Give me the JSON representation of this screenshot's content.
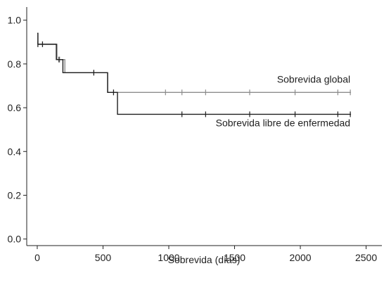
{
  "chart_data": {
    "type": "line",
    "title": "",
    "xlabel": "Sobrevida (días)",
    "ylabel": "",
    "xlim": [
      -80,
      2620
    ],
    "ylim": [
      -0.03,
      1.06
    ],
    "x_ticks": [
      0,
      500,
      1000,
      1500,
      2000,
      2500
    ],
    "x_tick_labels": [
      "0",
      "500",
      "1000",
      "1500",
      "2000",
      "2500"
    ],
    "y_ticks": [
      0.0,
      0.2,
      0.4,
      0.6,
      0.8,
      1.0
    ],
    "y_tick_labels": [
      "0.0",
      "0.2",
      "0.4",
      "0.6",
      "0.8",
      "1.0"
    ],
    "grid": false,
    "series": [
      {
        "name": "Sobrevida global",
        "color": "#8c8c8c",
        "steps": [
          [
            0,
            0.94
          ],
          [
            5,
            0.89
          ],
          [
            150,
            0.82
          ],
          [
            210,
            0.76
          ],
          [
            535,
            0.67
          ],
          [
            2385,
            0.67
          ]
        ],
        "censored": [
          [
            5,
            0.89
          ],
          [
            40,
            0.89
          ],
          [
            170,
            0.82
          ],
          [
            430,
            0.76
          ],
          [
            580,
            0.67
          ],
          [
            975,
            0.67
          ],
          [
            1100,
            0.67
          ],
          [
            1280,
            0.67
          ],
          [
            1615,
            0.67
          ],
          [
            1960,
            0.67
          ],
          [
            2285,
            0.67
          ],
          [
            2380,
            0.67
          ]
        ]
      },
      {
        "name": "Sobrevida libre de enfermedad",
        "color": "#1f1f1f",
        "steps": [
          [
            0,
            0.94
          ],
          [
            5,
            0.89
          ],
          [
            145,
            0.82
          ],
          [
            195,
            0.76
          ],
          [
            535,
            0.67
          ],
          [
            610,
            0.57
          ],
          [
            2385,
            0.57
          ]
        ],
        "censored": [
          [
            5,
            0.89
          ],
          [
            40,
            0.89
          ],
          [
            165,
            0.82
          ],
          [
            430,
            0.76
          ],
          [
            580,
            0.67
          ],
          [
            1100,
            0.57
          ],
          [
            1280,
            0.57
          ],
          [
            1615,
            0.57
          ],
          [
            1960,
            0.57
          ],
          [
            2285,
            0.57
          ],
          [
            2380,
            0.57
          ]
        ]
      }
    ],
    "annotations": [
      {
        "text": "Sobrevida global",
        "x": 2380,
        "y": 0.715
      },
      {
        "text": "Sobrevida libre de enfermedad",
        "x": 2380,
        "y": 0.515
      }
    ]
  }
}
